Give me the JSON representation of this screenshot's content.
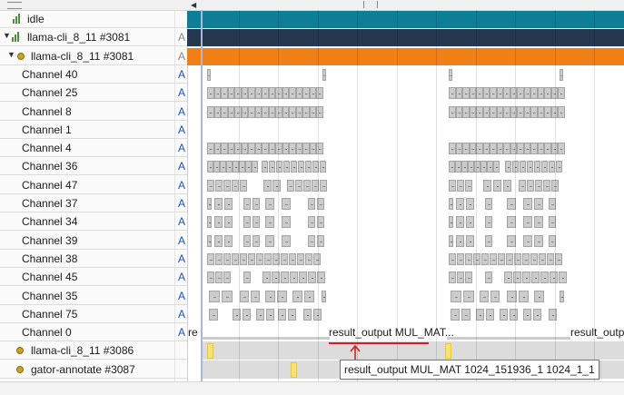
{
  "left_rows": [
    {
      "label": "idle",
      "type": "thread",
      "a": ""
    },
    {
      "label": "llama-cli_8_11 #3081",
      "type": "process",
      "a": "A"
    },
    {
      "label": "llama-cli_8_11 #3081",
      "type": "thread",
      "a": "A"
    },
    {
      "label": "Channel 40",
      "type": "channel",
      "a": "A"
    },
    {
      "label": "Channel 25",
      "type": "channel",
      "a": "A"
    },
    {
      "label": "Channel 8",
      "type": "channel",
      "a": "A"
    },
    {
      "label": "Channel 1",
      "type": "channel",
      "a": "A"
    },
    {
      "label": "Channel 4",
      "type": "channel",
      "a": "A"
    },
    {
      "label": "Channel 36",
      "type": "channel",
      "a": "A"
    },
    {
      "label": "Channel 47",
      "type": "channel",
      "a": "A"
    },
    {
      "label": "Channel 37",
      "type": "channel",
      "a": "A"
    },
    {
      "label": "Channel 34",
      "type": "channel",
      "a": "A"
    },
    {
      "label": "Channel 39",
      "type": "channel",
      "a": "A"
    },
    {
      "label": "Channel 38",
      "type": "channel",
      "a": "A"
    },
    {
      "label": "Channel 45",
      "type": "channel",
      "a": "A"
    },
    {
      "label": "Channel 35",
      "type": "channel",
      "a": "A"
    },
    {
      "label": "Channel 75",
      "type": "channel",
      "a": "A"
    },
    {
      "label": "Channel 0",
      "type": "channel",
      "a": "A"
    },
    {
      "label": "llama-cli_8_11 #3086",
      "type": "dot",
      "a": ""
    },
    {
      "label": "gator-annotate #3087",
      "type": "dot",
      "a": ""
    }
  ],
  "channel0": {
    "text_start": "re",
    "text_mid": "result_output MUL_MAT...",
    "text_end": "result_output"
  },
  "tooltip": "result_output MUL_MAT 1024_151936_1 1024_1_1",
  "colors": {
    "idle_track": "#0e7e97",
    "process_track": "#253850",
    "thread_track": "#f07f15",
    "block": "#cccccc",
    "marker": "#f6e27a",
    "annotation": "#d21f1f"
  }
}
